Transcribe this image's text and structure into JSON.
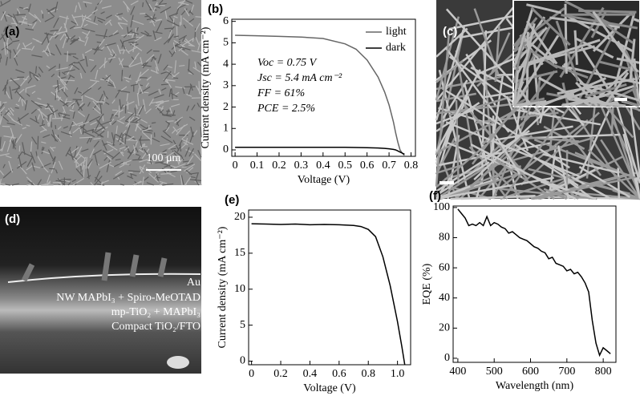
{
  "images": [
    {
      "label": "(a)",
      "scale_bar": "100 μm"
    },
    {
      "label": "(c)"
    },
    {
      "label": "(d)",
      "annotations": [
        "Au",
        "NW MAPbI₃ + Spiro-MeOTAD",
        "mp-TiO₂ + MAPbI₃",
        "Compact TiO₂/FTO"
      ]
    }
  ],
  "chart_data": [
    {
      "type": "line",
      "panel_label": "(b)",
      "x_label": "Voltage (V)",
      "y_label": "Current density (mA cm⁻²)",
      "x": [
        0,
        0.1,
        0.2,
        0.3,
        0.4,
        0.5,
        0.55,
        0.6,
        0.65,
        0.68,
        0.7,
        0.72,
        0.73,
        0.74,
        0.75,
        0.76,
        0.77
      ],
      "series": [
        {
          "name": "light",
          "color": "#666666",
          "values": [
            5.35,
            5.33,
            5.3,
            5.27,
            5.2,
            4.95,
            4.7,
            4.2,
            3.4,
            2.7,
            2.1,
            1.3,
            0.8,
            0.35,
            0,
            -0.15,
            -0.25
          ]
        },
        {
          "name": "dark",
          "color": "#000000",
          "values": [
            0.12,
            0.12,
            0.12,
            0.12,
            0.12,
            0.12,
            0.11,
            0.1,
            0.09,
            0.07,
            0.05,
            0.02,
            0,
            -0.05,
            -0.1,
            -0.15,
            -0.2
          ]
        }
      ],
      "annotations": [
        "Voc = 0.75 V",
        "Jsc = 5.4 mA cm⁻²",
        "FF = 61%",
        "PCE = 2.5%"
      ],
      "legend": "upper right",
      "xlim": [
        -0.015,
        0.82
      ],
      "xticks": [
        0,
        0.1,
        0.2,
        0.3,
        0.4,
        0.5,
        0.6,
        0.7,
        0.8
      ],
      "ylim": [
        -0.3,
        6.1
      ],
      "yticks": [
        0,
        1,
        2,
        3,
        4,
        5,
        6
      ]
    },
    {
      "type": "line",
      "panel_label": "(e)",
      "x_label": "Voltage (V)",
      "y_label": "Current density (mA cm⁻²)",
      "x": [
        0,
        0.1,
        0.2,
        0.3,
        0.4,
        0.5,
        0.6,
        0.7,
        0.75,
        0.8,
        0.85,
        0.9,
        0.95,
        1.0,
        1.03,
        1.05
      ],
      "series": [
        {
          "color": "#000000",
          "values": [
            19.1,
            19.05,
            19.0,
            19.05,
            18.95,
            19.0,
            18.95,
            18.85,
            18.7,
            18.3,
            17.3,
            14.5,
            10.5,
            5.5,
            2,
            -0.5
          ]
        }
      ],
      "xlim": [
        -0.02,
        1.09
      ],
      "xticks": [
        0,
        0.2,
        0.4,
        0.6,
        0.8,
        {
          "value": 1,
          "label": "1.0"
        }
      ],
      "ylim": [
        -0.5,
        21
      ],
      "yticks": [
        0,
        5,
        10,
        15,
        20
      ]
    },
    {
      "type": "line",
      "panel_label": "(f)",
      "x_label": "Wavelength (nm)",
      "y_label": "EQE (%)",
      "x": [
        400,
        410,
        420,
        430,
        440,
        450,
        460,
        470,
        480,
        490,
        500,
        510,
        520,
        530,
        540,
        550,
        560,
        570,
        580,
        590,
        600,
        610,
        620,
        630,
        640,
        650,
        660,
        670,
        680,
        690,
        700,
        710,
        720,
        730,
        740,
        750,
        760,
        770,
        780,
        790,
        800,
        810,
        820
      ],
      "series": [
        {
          "color": "#000000",
          "values": [
            99,
            96,
            93,
            88,
            89,
            88,
            90,
            88,
            94,
            88,
            90,
            89,
            87,
            86,
            83,
            84,
            82,
            80,
            79,
            78,
            76,
            74,
            73,
            71,
            70,
            66,
            67,
            63,
            62,
            61,
            58,
            59,
            56,
            57,
            54,
            50,
            44,
            25,
            10,
            2,
            7,
            5,
            3
          ]
        }
      ],
      "xlim": [
        387,
        835
      ],
      "xticks": [
        400,
        500,
        600,
        700,
        800
      ],
      "ylim": [
        -2.7,
        101
      ],
      "yticks": [
        0,
        20,
        40,
        60,
        80,
        100
      ]
    }
  ]
}
